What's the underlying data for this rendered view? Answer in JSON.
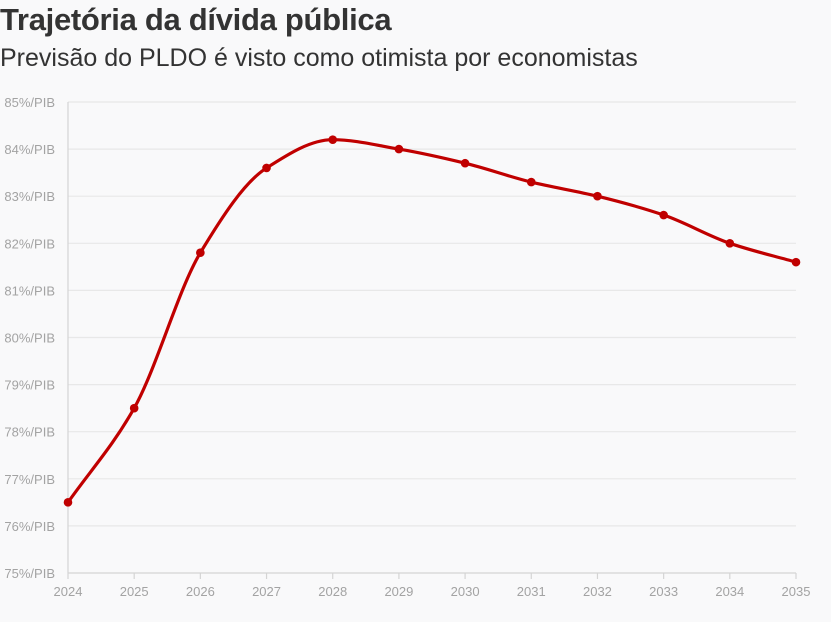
{
  "header": {
    "title": "Trajetória da dívida pública",
    "subtitle": "Previsão do PLDO é visto como otimista por economistas"
  },
  "chart_data": {
    "type": "line",
    "title": "Trajetória da dívida pública",
    "subtitle": "Previsão do PLDO é visto como otimista por economistas",
    "xlabel": "",
    "ylabel": "",
    "x": [
      2024,
      2025,
      2026,
      2027,
      2028,
      2029,
      2030,
      2031,
      2032,
      2033,
      2034,
      2035
    ],
    "series": [
      {
        "values": [
          76.5,
          78.5,
          81.8,
          83.6,
          84.2,
          84.0,
          83.7,
          83.3,
          83.0,
          82.6,
          82.0,
          81.6
        ]
      }
    ],
    "ylim": [
      75,
      85
    ],
    "y_ticks": [
      75,
      76,
      77,
      78,
      79,
      80,
      81,
      82,
      83,
      84,
      85
    ],
    "y_tick_suffix": "%/PIB",
    "grid": true,
    "legend": "none",
    "colors": {
      "line": "#c00000",
      "grid": "#e8e8e8",
      "axis": "#d4d4d4",
      "tick_text": "#a3a3a3",
      "text": "#333333",
      "background": "#f9f9fa"
    }
  }
}
